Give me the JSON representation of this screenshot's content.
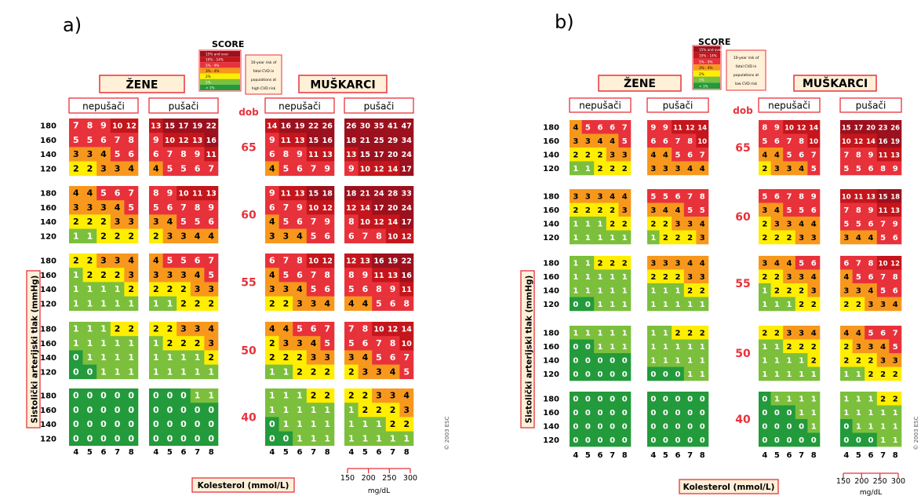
{
  "panels": [
    {
      "letter": "a)",
      "brand": "SCORE",
      "legend_items": [
        "15% and over",
        "10% - 14%",
        "5% - 9%",
        "3% - 4%",
        "2%",
        "1%",
        "< 1%"
      ],
      "legend_note": [
        "10-year risk of",
        "fatal CVD in",
        "populations at",
        "high CVD risk"
      ],
      "women_label": "ŽENE",
      "men_label": "MUŠKARCI",
      "nonsmoker_label": "nepušači",
      "smoker_label": "pušači",
      "age_label": "dob",
      "ylabel": "Sistolički arterijski tlak (mmHg)",
      "xlabel": "Kolesterol (mmol/L)",
      "copyright": "© 2003 ESC",
      "unit_ticks": [
        "150",
        "200",
        "250",
        "300"
      ],
      "unit": "mg/dL",
      "ages": [
        "65",
        "60",
        "55",
        "50",
        "40"
      ],
      "bp": [
        "180",
        "160",
        "140",
        "120"
      ],
      "chol": [
        "4",
        "5",
        "6",
        "7",
        "8"
      ],
      "women_nonsmoker": [
        [
          [
            7,
            8,
            9,
            10,
            12
          ],
          [
            5,
            5,
            6,
            7,
            8
          ],
          [
            3,
            3,
            4,
            5,
            6
          ],
          [
            2,
            2,
            3,
            3,
            4
          ]
        ],
        [
          [
            4,
            4,
            5,
            6,
            7
          ],
          [
            3,
            3,
            3,
            4,
            5
          ],
          [
            2,
            2,
            2,
            3,
            3
          ],
          [
            1,
            1,
            2,
            2,
            2
          ]
        ],
        [
          [
            2,
            2,
            3,
            3,
            4
          ],
          [
            1,
            2,
            2,
            2,
            3
          ],
          [
            1,
            1,
            1,
            1,
            2
          ],
          [
            1,
            1,
            1,
            1,
            1
          ]
        ],
        [
          [
            1,
            1,
            1,
            2,
            2
          ],
          [
            1,
            1,
            1,
            1,
            1
          ],
          [
            0,
            1,
            1,
            1,
            1
          ],
          [
            0,
            0,
            1,
            1,
            1
          ]
        ],
        [
          [
            0,
            0,
            0,
            0,
            0
          ],
          [
            0,
            0,
            0,
            0,
            0
          ],
          [
            0,
            0,
            0,
            0,
            0
          ],
          [
            0,
            0,
            0,
            0,
            0
          ]
        ]
      ],
      "women_smoker": [
        [
          [
            13,
            15,
            17,
            19,
            22
          ],
          [
            9,
            10,
            12,
            13,
            16
          ],
          [
            6,
            7,
            8,
            9,
            11
          ],
          [
            4,
            5,
            5,
            6,
            7
          ]
        ],
        [
          [
            8,
            9,
            10,
            11,
            13
          ],
          [
            5,
            6,
            7,
            8,
            9
          ],
          [
            3,
            4,
            5,
            5,
            6
          ],
          [
            2,
            3,
            3,
            4,
            4
          ]
        ],
        [
          [
            4,
            5,
            5,
            6,
            7
          ],
          [
            3,
            3,
            3,
            4,
            5
          ],
          [
            2,
            2,
            2,
            3,
            3
          ],
          [
            1,
            1,
            2,
            2,
            2
          ]
        ],
        [
          [
            2,
            2,
            3,
            3,
            4
          ],
          [
            1,
            2,
            2,
            2,
            3
          ],
          [
            1,
            1,
            1,
            1,
            2
          ],
          [
            1,
            1,
            1,
            1,
            1
          ]
        ],
        [
          [
            0,
            0,
            0,
            1,
            1
          ],
          [
            0,
            0,
            0,
            0,
            0
          ],
          [
            0,
            0,
            0,
            0,
            0
          ],
          [
            0,
            0,
            0,
            0,
            0
          ]
        ]
      ],
      "men_nonsmoker": [
        [
          [
            14,
            16,
            19,
            22,
            26
          ],
          [
            9,
            11,
            13,
            15,
            16
          ],
          [
            6,
            8,
            9,
            11,
            13
          ],
          [
            4,
            5,
            6,
            7,
            9
          ]
        ],
        [
          [
            9,
            11,
            13,
            15,
            18
          ],
          [
            6,
            7,
            9,
            10,
            12
          ],
          [
            4,
            5,
            6,
            7,
            9
          ],
          [
            3,
            3,
            4,
            5,
            6
          ]
        ],
        [
          [
            6,
            7,
            8,
            10,
            12
          ],
          [
            4,
            5,
            6,
            7,
            8
          ],
          [
            3,
            3,
            4,
            5,
            6
          ],
          [
            2,
            2,
            3,
            3,
            4
          ]
        ],
        [
          [
            4,
            4,
            5,
            6,
            7
          ],
          [
            2,
            3,
            3,
            4,
            5
          ],
          [
            2,
            2,
            2,
            3,
            3
          ],
          [
            1,
            1,
            2,
            2,
            2
          ]
        ],
        [
          [
            1,
            1,
            1,
            2,
            2
          ],
          [
            1,
            1,
            1,
            1,
            1
          ],
          [
            0,
            1,
            1,
            1,
            1
          ],
          [
            0,
            0,
            1,
            1,
            1
          ]
        ]
      ],
      "men_smoker": [
        [
          [
            26,
            30,
            35,
            41,
            47
          ],
          [
            18,
            21,
            25,
            29,
            34
          ],
          [
            13,
            15,
            17,
            20,
            24
          ],
          [
            9,
            10,
            12,
            14,
            17
          ]
        ],
        [
          [
            18,
            21,
            24,
            28,
            33
          ],
          [
            12,
            14,
            17,
            20,
            24
          ],
          [
            8,
            10,
            12,
            14,
            17
          ],
          [
            6,
            7,
            8,
            10,
            12
          ]
        ],
        [
          [
            12,
            13,
            16,
            19,
            22
          ],
          [
            8,
            9,
            11,
            13,
            16
          ],
          [
            5,
            6,
            8,
            9,
            11
          ],
          [
            4,
            4,
            5,
            6,
            8
          ]
        ],
        [
          [
            7,
            8,
            10,
            12,
            14
          ],
          [
            5,
            6,
            7,
            8,
            10
          ],
          [
            3,
            4,
            5,
            6,
            7
          ],
          [
            2,
            3,
            3,
            4,
            5
          ]
        ],
        [
          [
            2,
            2,
            3,
            3,
            4
          ],
          [
            1,
            2,
            2,
            2,
            3
          ],
          [
            1,
            1,
            1,
            2,
            2
          ],
          [
            1,
            1,
            1,
            1,
            1
          ]
        ]
      ]
    },
    {
      "letter": "b)",
      "brand": "SCORE",
      "legend_items": [
        "15% and over",
        "10% - 14%",
        "5% - 9%",
        "3% - 4%",
        "2%",
        "1%",
        "< 1%"
      ],
      "legend_note": [
        "10-year risk of",
        "fatal CVD in",
        "populations at",
        "low CVD risk"
      ],
      "women_label": "ŽENE",
      "men_label": "MUŠKARCI",
      "nonsmoker_label": "nepušači",
      "smoker_label": "pušači",
      "age_label": "dob",
      "ylabel": "Sistolički arterijski tlak (mmHg)",
      "xlabel": "Kolesterol (mmol/L)",
      "copyright": "© 2003 ESC",
      "unit_ticks": [
        "150",
        "200",
        "250",
        "300"
      ],
      "unit": "mg/dL",
      "ages": [
        "65",
        "60",
        "55",
        "50",
        "40"
      ],
      "bp": [
        "180",
        "160",
        "140",
        "120"
      ],
      "chol": [
        "4",
        "5",
        "6",
        "7",
        "8"
      ],
      "women_nonsmoker": [
        [
          [
            4,
            5,
            6,
            6,
            7
          ],
          [
            3,
            3,
            4,
            4,
            5
          ],
          [
            2,
            2,
            2,
            3,
            3
          ],
          [
            1,
            1,
            2,
            2,
            2
          ]
        ],
        [
          [
            3,
            3,
            3,
            4,
            4
          ],
          [
            2,
            2,
            2,
            2,
            3
          ],
          [
            1,
            1,
            1,
            2,
            2
          ],
          [
            1,
            1,
            1,
            1,
            1
          ]
        ],
        [
          [
            1,
            1,
            2,
            2,
            2
          ],
          [
            1,
            1,
            1,
            1,
            1
          ],
          [
            1,
            1,
            1,
            1,
            1
          ],
          [
            0,
            0,
            1,
            1,
            1
          ]
        ],
        [
          [
            1,
            1,
            1,
            1,
            1
          ],
          [
            0,
            0,
            1,
            1,
            1
          ],
          [
            0,
            0,
            0,
            0,
            0
          ],
          [
            0,
            0,
            0,
            0,
            0
          ]
        ],
        [
          [
            0,
            0,
            0,
            0,
            0
          ],
          [
            0,
            0,
            0,
            0,
            0
          ],
          [
            0,
            0,
            0,
            0,
            0
          ],
          [
            0,
            0,
            0,
            0,
            0
          ]
        ]
      ],
      "women_smoker": [
        [
          [
            9,
            9,
            11,
            12,
            14
          ],
          [
            6,
            6,
            7,
            8,
            10
          ],
          [
            4,
            4,
            5,
            6,
            7
          ],
          [
            3,
            3,
            3,
            4,
            4
          ]
        ],
        [
          [
            5,
            5,
            6,
            7,
            8
          ],
          [
            3,
            4,
            4,
            5,
            5
          ],
          [
            2,
            2,
            3,
            3,
            4
          ],
          [
            1,
            2,
            2,
            2,
            3
          ]
        ],
        [
          [
            3,
            3,
            3,
            4,
            4
          ],
          [
            2,
            2,
            2,
            3,
            3
          ],
          [
            1,
            1,
            1,
            2,
            2
          ],
          [
            1,
            1,
            1,
            1,
            1
          ]
        ],
        [
          [
            1,
            1,
            2,
            2,
            2
          ],
          [
            1,
            1,
            1,
            1,
            1
          ],
          [
            1,
            1,
            1,
            1,
            1
          ],
          [
            0,
            0,
            0,
            1,
            1
          ]
        ],
        [
          [
            0,
            0,
            0,
            0,
            0
          ],
          [
            0,
            0,
            0,
            0,
            0
          ],
          [
            0,
            0,
            0,
            0,
            0
          ],
          [
            0,
            0,
            0,
            0,
            0
          ]
        ]
      ],
      "men_nonsmoker": [
        [
          [
            8,
            9,
            10,
            12,
            14
          ],
          [
            5,
            6,
            7,
            8,
            10
          ],
          [
            4,
            4,
            5,
            6,
            7
          ],
          [
            2,
            3,
            3,
            4,
            5
          ]
        ],
        [
          [
            5,
            6,
            7,
            8,
            9
          ],
          [
            3,
            4,
            5,
            5,
            6
          ],
          [
            2,
            3,
            3,
            4,
            4
          ],
          [
            2,
            2,
            2,
            3,
            3
          ]
        ],
        [
          [
            3,
            4,
            4,
            5,
            6
          ],
          [
            2,
            2,
            3,
            3,
            4
          ],
          [
            1,
            2,
            2,
            2,
            3
          ],
          [
            1,
            1,
            1,
            2,
            2
          ]
        ],
        [
          [
            2,
            2,
            3,
            3,
            4
          ],
          [
            1,
            1,
            2,
            2,
            2
          ],
          [
            1,
            1,
            1,
            1,
            2
          ],
          [
            1,
            1,
            1,
            1,
            1
          ]
        ],
        [
          [
            0,
            1,
            1,
            1,
            1
          ],
          [
            0,
            0,
            0,
            1,
            1
          ],
          [
            0,
            0,
            0,
            0,
            1
          ],
          [
            0,
            0,
            0,
            0,
            0
          ]
        ]
      ],
      "men_smoker": [
        [
          [
            15,
            17,
            20,
            23,
            26
          ],
          [
            10,
            12,
            14,
            16,
            19
          ],
          [
            7,
            8,
            9,
            11,
            13
          ],
          [
            5,
            5,
            6,
            8,
            9
          ]
        ],
        [
          [
            10,
            11,
            13,
            15,
            18
          ],
          [
            7,
            8,
            9,
            11,
            13
          ],
          [
            5,
            5,
            6,
            7,
            9
          ],
          [
            3,
            4,
            4,
            5,
            6
          ]
        ],
        [
          [
            6,
            7,
            8,
            10,
            12
          ],
          [
            4,
            5,
            6,
            7,
            8
          ],
          [
            3,
            3,
            4,
            5,
            6
          ],
          [
            2,
            2,
            3,
            3,
            4
          ]
        ],
        [
          [
            4,
            4,
            5,
            6,
            7
          ],
          [
            2,
            3,
            3,
            4,
            5
          ],
          [
            2,
            2,
            2,
            3,
            3
          ],
          [
            1,
            1,
            2,
            2,
            2
          ]
        ],
        [
          [
            1,
            1,
            1,
            2,
            2
          ],
          [
            1,
            1,
            1,
            1,
            1
          ],
          [
            0,
            1,
            1,
            1,
            1
          ],
          [
            0,
            0,
            0,
            1,
            1
          ]
        ]
      ]
    }
  ],
  "colors": {
    "frame": "#e8323b",
    "age_text": "#e8323b",
    "box_fill": "#fff0d8",
    "risk_0": "#239a3b",
    "risk_1": "#7cbf3c",
    "risk_2": "#ffee00",
    "risk_3_4": "#f7981d",
    "risk_5_9": "#e8323b",
    "risk_10_14": "#c4161c",
    "risk_15": "#9b111e"
  }
}
